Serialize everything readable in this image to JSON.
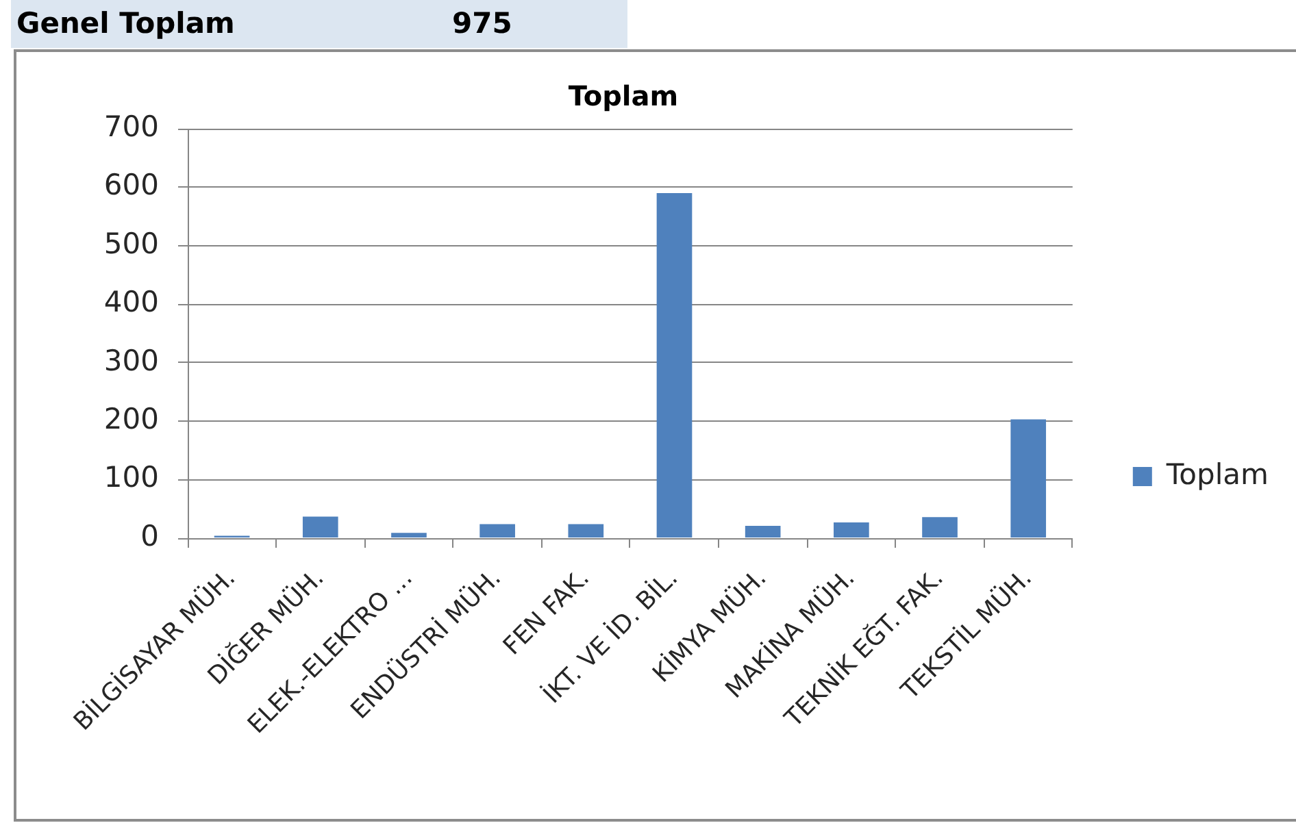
{
  "chart_data": {
    "type": "bar",
    "title": "Toplam",
    "annotations": [
      "Genel Toplam",
      "975"
    ],
    "categories": [
      "BİLGİSAYAR MÜH.",
      "DİĞER MÜH.",
      "ELEK.-ELEKTRO ...",
      "ENDÜSTRİ MÜH.",
      "FEN FAK.",
      "İKT. VE İD. BİL.",
      "KİMYA MÜH.",
      "MAKİNA MÜH.",
      "TEKNİK EĞT. FAK.",
      "TEKSTİL MÜH."
    ],
    "series": [
      {
        "name": "Toplam",
        "color": "#4f81bd",
        "values": [
          4,
          37,
          9,
          24,
          24,
          590,
          21,
          27,
          36,
          203
        ]
      }
    ],
    "ylim": [
      0,
      700
    ],
    "yticks": [
      0,
      100,
      200,
      300,
      400,
      500,
      600,
      700
    ],
    "grid": "y",
    "legend": "right"
  }
}
